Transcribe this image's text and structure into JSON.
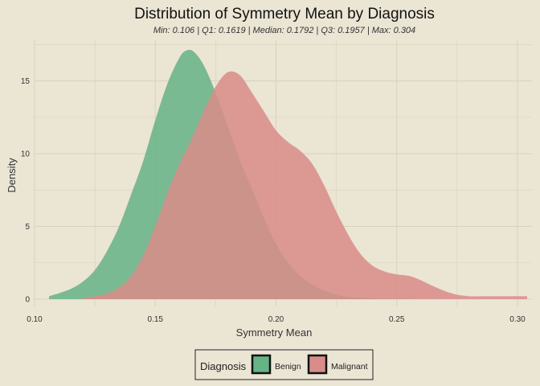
{
  "chart_data": {
    "type": "area",
    "title": "Distribution of Symmetry Mean by Diagnosis",
    "subtitle": "Min: 0.106 | Q1: 0.1619 | Median: 0.1792 | Q3: 0.1957 | Max: 0.304",
    "xlabel": "Symmetry Mean",
    "ylabel": "Density",
    "xlim": [
      0.1,
      0.306
    ],
    "ylim": [
      -0.5,
      17.8
    ],
    "x_ticks": [
      "0.10",
      "0.15",
      "0.20",
      "0.25",
      "0.30"
    ],
    "x_tick_values": [
      0.1,
      0.15,
      0.2,
      0.25,
      0.3
    ],
    "y_ticks": [
      "0",
      "5",
      "10",
      "15"
    ],
    "y_tick_values": [
      0,
      5,
      10,
      15
    ],
    "grid": true,
    "legend": {
      "title": "Diagnosis",
      "placement": "bottom"
    },
    "series": [
      {
        "name": "Benign",
        "color": "#66b386",
        "x": [
          0.106,
          0.11,
          0.115,
          0.12,
          0.125,
          0.13,
          0.135,
          0.14,
          0.145,
          0.15,
          0.155,
          0.16,
          0.163,
          0.166,
          0.17,
          0.175,
          0.18,
          0.185,
          0.19,
          0.195,
          0.2,
          0.205,
          0.21,
          0.215,
          0.22,
          0.225,
          0.23,
          0.24,
          0.25,
          0.26,
          0.27
        ],
        "values": [
          0.2,
          0.4,
          0.7,
          1.2,
          2.0,
          3.3,
          5.0,
          7.2,
          9.5,
          12.3,
          14.8,
          16.6,
          17.1,
          17.0,
          16.1,
          14.2,
          11.9,
          9.6,
          7.6,
          5.6,
          3.8,
          2.5,
          1.6,
          1.0,
          0.6,
          0.3,
          0.15,
          0.05,
          0.02,
          0.0,
          0.0
        ]
      },
      {
        "name": "Malignant",
        "color": "#d98c88",
        "x": [
          0.12,
          0.125,
          0.13,
          0.135,
          0.14,
          0.145,
          0.15,
          0.155,
          0.16,
          0.165,
          0.17,
          0.175,
          0.18,
          0.185,
          0.19,
          0.195,
          0.2,
          0.205,
          0.21,
          0.215,
          0.22,
          0.225,
          0.23,
          0.235,
          0.24,
          0.245,
          0.25,
          0.255,
          0.26,
          0.265,
          0.27,
          0.275,
          0.28,
          0.285,
          0.29,
          0.295,
          0.3,
          0.304
        ],
        "values": [
          0.1,
          0.2,
          0.4,
          0.8,
          1.6,
          3.0,
          5.0,
          7.3,
          9.3,
          11.0,
          12.9,
          14.6,
          15.6,
          15.4,
          14.2,
          12.9,
          11.6,
          10.8,
          10.2,
          9.3,
          7.8,
          6.0,
          4.4,
          3.1,
          2.3,
          1.9,
          1.7,
          1.6,
          1.3,
          0.9,
          0.55,
          0.3,
          0.2,
          0.2,
          0.2,
          0.2,
          0.2,
          0.2
        ]
      }
    ]
  }
}
